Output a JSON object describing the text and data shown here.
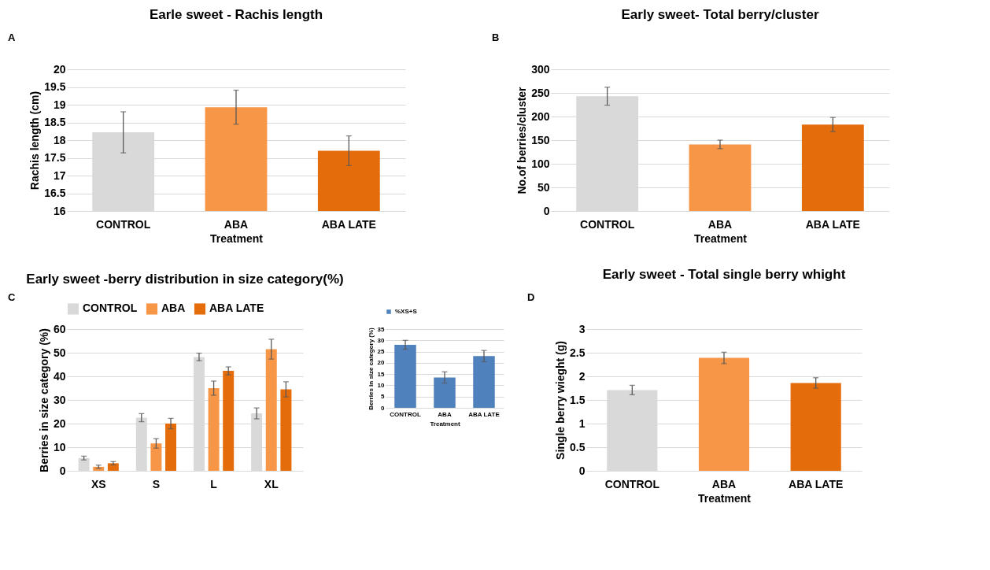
{
  "chart_data": [
    {
      "type": "bar",
      "title": "Earle sweet - Rachis length",
      "annotations": [
        "A"
      ],
      "xlabel": "Treatment",
      "ylabel": "Rachis length (cm)",
      "categories": [
        "CONTROL",
        "ABA",
        "ABA LATE"
      ],
      "values": [
        18.22,
        18.93,
        17.7
      ],
      "errors": [
        0.58,
        0.48,
        0.42
      ],
      "colors": [
        "#d9d9d9",
        "#f79646",
        "#e46c0a"
      ],
      "ylim": [
        16,
        20
      ],
      "yticks": [
        16,
        16.5,
        17,
        17.5,
        18,
        18.5,
        19,
        19.5,
        20
      ],
      "grid": "y"
    },
    {
      "type": "bar",
      "title": "Early sweet- Total berry/cluster",
      "annotations": [
        "B"
      ],
      "xlabel": "Treatment",
      "ylabel": "No.of berries/cluster",
      "categories": [
        "CONTROL",
        "ABA",
        "ABA LATE"
      ],
      "values": [
        243,
        141,
        183
      ],
      "errors": [
        19,
        9,
        15
      ],
      "colors": [
        "#d9d9d9",
        "#f79646",
        "#e46c0a"
      ],
      "ylim": [
        0,
        300
      ],
      "yticks": [
        0,
        50,
        100,
        150,
        200,
        250,
        300
      ],
      "grid": "y"
    },
    {
      "type": "bar",
      "title": "Early sweet -berry distribution in size category(%)",
      "annotations": [
        "C"
      ],
      "ylabel": "Berries in size category (%)",
      "categories": [
        "XS",
        "S",
        "L",
        "XL"
      ],
      "legend": "top",
      "ylim": [
        0,
        60
      ],
      "yticks": [
        0,
        10,
        20,
        30,
        40,
        50,
        60
      ],
      "grid": "y",
      "series": [
        {
          "name": "CONTROL",
          "color": "#d9d9d9",
          "values": [
            5.4,
            22.5,
            48.2,
            24.3
          ],
          "errors": [
            0.8,
            1.7,
            1.6,
            2.3
          ]
        },
        {
          "name": "ABA",
          "color": "#f79646",
          "values": [
            1.7,
            11.6,
            35,
            51.5
          ],
          "errors": [
            0.7,
            2,
            3,
            4.2
          ]
        },
        {
          "name": "ABA LATE",
          "color": "#e46c0a",
          "values": [
            3.2,
            20,
            42.3,
            34.5
          ],
          "errors": [
            0.7,
            2.2,
            1.7,
            3.2
          ]
        }
      ]
    },
    {
      "type": "bar",
      "xlabel": "Treatment",
      "ylabel": "Berries in size category (%)",
      "categories": [
        "CONTROL",
        "ABA",
        "ABA LATE"
      ],
      "legend": "top",
      "ylim": [
        0,
        35
      ],
      "yticks": [
        0,
        5,
        10,
        15,
        20,
        25,
        30,
        35
      ],
      "grid": "y",
      "series": [
        {
          "name": "%XS+S",
          "color": "#4f81bd",
          "values": [
            28,
            13.5,
            23
          ],
          "errors": [
            2,
            2.5,
            2.5
          ]
        }
      ]
    },
    {
      "type": "bar",
      "title": "Early sweet - Total single berry whight",
      "annotations": [
        "D"
      ],
      "xlabel": "Treatment",
      "ylabel": "Single berry wieght (g)",
      "categories": [
        "CONTROL",
        "ABA",
        "ABA LATE"
      ],
      "values": [
        1.71,
        2.39,
        1.86
      ],
      "errors": [
        0.1,
        0.12,
        0.11
      ],
      "colors": [
        "#d9d9d9",
        "#f79646",
        "#e46c0a"
      ],
      "ylim": [
        0,
        3
      ],
      "yticks": [
        0,
        0.5,
        1,
        1.5,
        2,
        2.5,
        3
      ],
      "grid": "y"
    }
  ]
}
